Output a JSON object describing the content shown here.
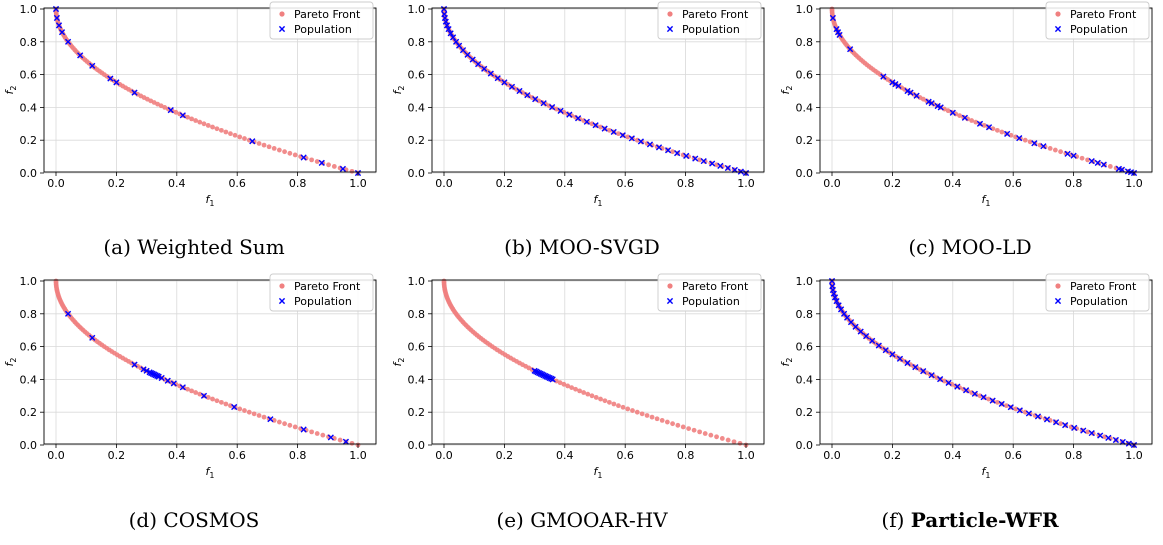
{
  "chart_data": [
    {
      "type": "scatter",
      "caption": "(a) Weighted Sum",
      "caption_label": "(a)",
      "caption_name": "Weighted Sum",
      "caption_bold": false,
      "xlabel": "f",
      "xlabel_sub": "1",
      "ylabel": "f",
      "ylabel_sub": "2",
      "xlim": [
        0,
        1
      ],
      "ylim": [
        0,
        1
      ],
      "xticks": [
        "0.0",
        "0.2",
        "0.4",
        "0.6",
        "0.8",
        "1.0"
      ],
      "yticks": [
        "0.0",
        "0.2",
        "0.4",
        "0.6",
        "0.8",
        "1.0"
      ],
      "grid": true,
      "legend_position": "top-right",
      "series": [
        {
          "name": "Pareto Front",
          "marker": "circle",
          "color": "#f08080",
          "curve": "f2 = 1 - sqrt(f1)",
          "points": 100
        },
        {
          "name": "Population",
          "marker": "x",
          "color": "#0000ff",
          "x": [
            0.0,
            0.003,
            0.01,
            0.02,
            0.04,
            0.08,
            0.12,
            0.18,
            0.2,
            0.26,
            0.38,
            0.42,
            0.65,
            0.82,
            0.88,
            0.95,
            1.0
          ]
        }
      ]
    },
    {
      "type": "scatter",
      "caption": "(b) MOO-SVGD",
      "caption_label": "(b)",
      "caption_name": "MOO-SVGD",
      "caption_bold": false,
      "xlabel": "f",
      "xlabel_sub": "1",
      "ylabel": "f",
      "ylabel_sub": "2",
      "xlim": [
        0,
        1
      ],
      "ylim": [
        0,
        1
      ],
      "xticks": [
        "0.0",
        "0.2",
        "0.4",
        "0.6",
        "0.8",
        "1.0"
      ],
      "yticks": [
        "0.0",
        "0.2",
        "0.4",
        "0.6",
        "0.8",
        "1.0"
      ],
      "grid": true,
      "legend_position": "top-right",
      "series": [
        {
          "name": "Pareto Front",
          "marker": "circle",
          "color": "#f08080",
          "curve": "f2 = 1 - sqrt(f1)",
          "points": 100
        },
        {
          "name": "Population",
          "marker": "x",
          "color": "#0000ff",
          "x": [
            0.0,
            0.001,
            0.003,
            0.006,
            0.01,
            0.015,
            0.022,
            0.03,
            0.04,
            0.05,
            0.063,
            0.078,
            0.095,
            0.113,
            0.133,
            0.155,
            0.178,
            0.2,
            0.225,
            0.25,
            0.276,
            0.302,
            0.33,
            0.358,
            0.386,
            0.415,
            0.444,
            0.473,
            0.502,
            0.532,
            0.562,
            0.592,
            0.622,
            0.652,
            0.682,
            0.712,
            0.742,
            0.772,
            0.802,
            0.832,
            0.86,
            0.888,
            0.915,
            0.94,
            0.963,
            0.983,
            1.0
          ]
        }
      ]
    },
    {
      "type": "scatter",
      "caption": "(c) MOO-LD",
      "caption_label": "(c)",
      "caption_name": "MOO-LD",
      "caption_bold": false,
      "xlabel": "f",
      "xlabel_sub": "1",
      "ylabel": "f",
      "ylabel_sub": "2",
      "xlim": [
        0,
        1
      ],
      "ylim": [
        0,
        1
      ],
      "xticks": [
        "0.0",
        "0.2",
        "0.4",
        "0.6",
        "0.8",
        "1.0"
      ],
      "yticks": [
        "0.0",
        "0.2",
        "0.4",
        "0.6",
        "0.8",
        "1.0"
      ],
      "grid": true,
      "legend_position": "top-right",
      "series": [
        {
          "name": "Pareto Front",
          "marker": "circle",
          "color": "#f08080",
          "curve": "f2 = 1 - sqrt(f1)",
          "points": 100
        },
        {
          "name": "Population",
          "marker": "x",
          "color": "#0000ff",
          "x": [
            0.003,
            0.015,
            0.02,
            0.025,
            0.06,
            0.17,
            0.2,
            0.21,
            0.22,
            0.25,
            0.26,
            0.28,
            0.32,
            0.33,
            0.35,
            0.36,
            0.4,
            0.44,
            0.49,
            0.52,
            0.58,
            0.62,
            0.67,
            0.7,
            0.78,
            0.8,
            0.86,
            0.88,
            0.9,
            0.95,
            0.96,
            0.98,
            0.99,
            1.0
          ]
        }
      ]
    },
    {
      "type": "scatter",
      "caption": "(d) COSMOS",
      "caption_label": "(d)",
      "caption_name": "COSMOS",
      "caption_bold": false,
      "xlabel": "f",
      "xlabel_sub": "1",
      "ylabel": "f",
      "ylabel_sub": "2",
      "xlim": [
        0,
        1
      ],
      "ylim": [
        0,
        1
      ],
      "xticks": [
        "0.0",
        "0.2",
        "0.4",
        "0.6",
        "0.8",
        "1.0"
      ],
      "yticks": [
        "0.0",
        "0.2",
        "0.4",
        "0.6",
        "0.8",
        "1.0"
      ],
      "grid": true,
      "legend_position": "top-right",
      "series": [
        {
          "name": "Pareto Front",
          "marker": "circle",
          "color": "#f08080",
          "curve": "f2 = 1 - sqrt(f1)",
          "points": 100
        },
        {
          "name": "Population",
          "marker": "x",
          "color": "#0000ff",
          "x": [
            0.04,
            0.12,
            0.26,
            0.29,
            0.3,
            0.31,
            0.315,
            0.32,
            0.325,
            0.33,
            0.335,
            0.34,
            0.35,
            0.37,
            0.39,
            0.42,
            0.49,
            0.59,
            0.71,
            0.82,
            0.91,
            0.96
          ]
        }
      ]
    },
    {
      "type": "scatter",
      "caption": "(e) GMOOAR-HV",
      "caption_label": "(e)",
      "caption_name": "GMOOAR-HV",
      "caption_bold": false,
      "xlabel": "f",
      "xlabel_sub": "1",
      "ylabel": "f",
      "ylabel_sub": "2",
      "xlim": [
        0,
        1
      ],
      "ylim": [
        0,
        1
      ],
      "xticks": [
        "0.0",
        "0.2",
        "0.4",
        "0.6",
        "0.8",
        "1.0"
      ],
      "yticks": [
        "0.0",
        "0.2",
        "0.4",
        "0.6",
        "0.8",
        "1.0"
      ],
      "grid": true,
      "legend_position": "top-right",
      "series": [
        {
          "name": "Pareto Front",
          "marker": "circle",
          "color": "#f08080",
          "curve": "f2 = 1 - sqrt(f1)",
          "points": 100
        },
        {
          "name": "Population",
          "marker": "x",
          "color": "#0000ff",
          "x": [
            0.3,
            0.305,
            0.31,
            0.315,
            0.32,
            0.325,
            0.33,
            0.335,
            0.34,
            0.345,
            0.35,
            0.355,
            0.36
          ]
        }
      ]
    },
    {
      "type": "scatter",
      "caption": "(f) Particle-WFR",
      "caption_label": "(f)",
      "caption_name": "Particle-WFR",
      "caption_bold": true,
      "xlabel": "f",
      "xlabel_sub": "1",
      "ylabel": "f",
      "ylabel_sub": "2",
      "xlim": [
        0,
        1
      ],
      "ylim": [
        0,
        1
      ],
      "xticks": [
        "0.0",
        "0.2",
        "0.4",
        "0.6",
        "0.8",
        "1.0"
      ],
      "yticks": [
        "0.0",
        "0.2",
        "0.4",
        "0.6",
        "0.8",
        "1.0"
      ],
      "grid": true,
      "legend_position": "top-right",
      "series": [
        {
          "name": "Pareto Front",
          "marker": "circle",
          "color": "#f08080",
          "curve": "f2 = 1 - sqrt(f1)",
          "points": 100
        },
        {
          "name": "Population",
          "marker": "x",
          "color": "#0000ff",
          "x": [
            0.0,
            0.001,
            0.003,
            0.006,
            0.01,
            0.015,
            0.022,
            0.03,
            0.04,
            0.05,
            0.063,
            0.078,
            0.095,
            0.113,
            0.133,
            0.155,
            0.178,
            0.2,
            0.225,
            0.25,
            0.276,
            0.302,
            0.33,
            0.358,
            0.386,
            0.415,
            0.444,
            0.473,
            0.502,
            0.532,
            0.562,
            0.592,
            0.622,
            0.652,
            0.682,
            0.712,
            0.742,
            0.772,
            0.802,
            0.832,
            0.86,
            0.888,
            0.915,
            0.94,
            0.963,
            0.983,
            1.0
          ]
        }
      ]
    }
  ]
}
